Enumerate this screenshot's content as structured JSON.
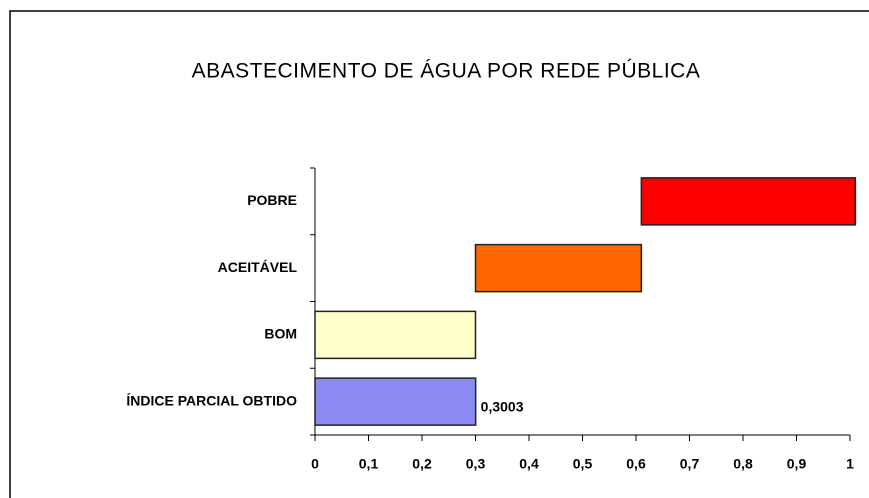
{
  "chart_data": {
    "type": "floating-bar",
    "orientation": "horizontal",
    "title": "ABASTECIMENTO DE ÁGUA POR REDE PÚBLICA",
    "categories": [
      "POBRE",
      "ACEITÁVEL",
      "BOM",
      "ÍNDICE PARCIAL OBTIDO"
    ],
    "ranges": [
      [
        0.61,
        1.01
      ],
      [
        0.3,
        0.61
      ],
      [
        0,
        0.3
      ],
      [
        0,
        0.3003
      ]
    ],
    "colors": [
      "#ff0000",
      "#ff6600",
      "#ffffcc",
      "#8a8af0"
    ],
    "value_labels": [
      null,
      null,
      null,
      "0,3003"
    ],
    "xlim": [
      0,
      1
    ],
    "xticks": [
      0,
      {
        "value": 0.1,
        "label": "0,1"
      },
      {
        "value": 0.2,
        "label": "0,2"
      },
      {
        "value": 0.3,
        "label": "0,3"
      },
      {
        "value": 0.4,
        "label": "0,4"
      },
      {
        "value": 0.5,
        "label": "0,5"
      },
      {
        "value": 0.6,
        "label": "0,6"
      },
      {
        "value": 0.7,
        "label": "0,7"
      },
      {
        "value": 0.8,
        "label": "0,8"
      },
      {
        "value": 0.9,
        "label": "0,9"
      },
      1
    ],
    "grid": false
  }
}
